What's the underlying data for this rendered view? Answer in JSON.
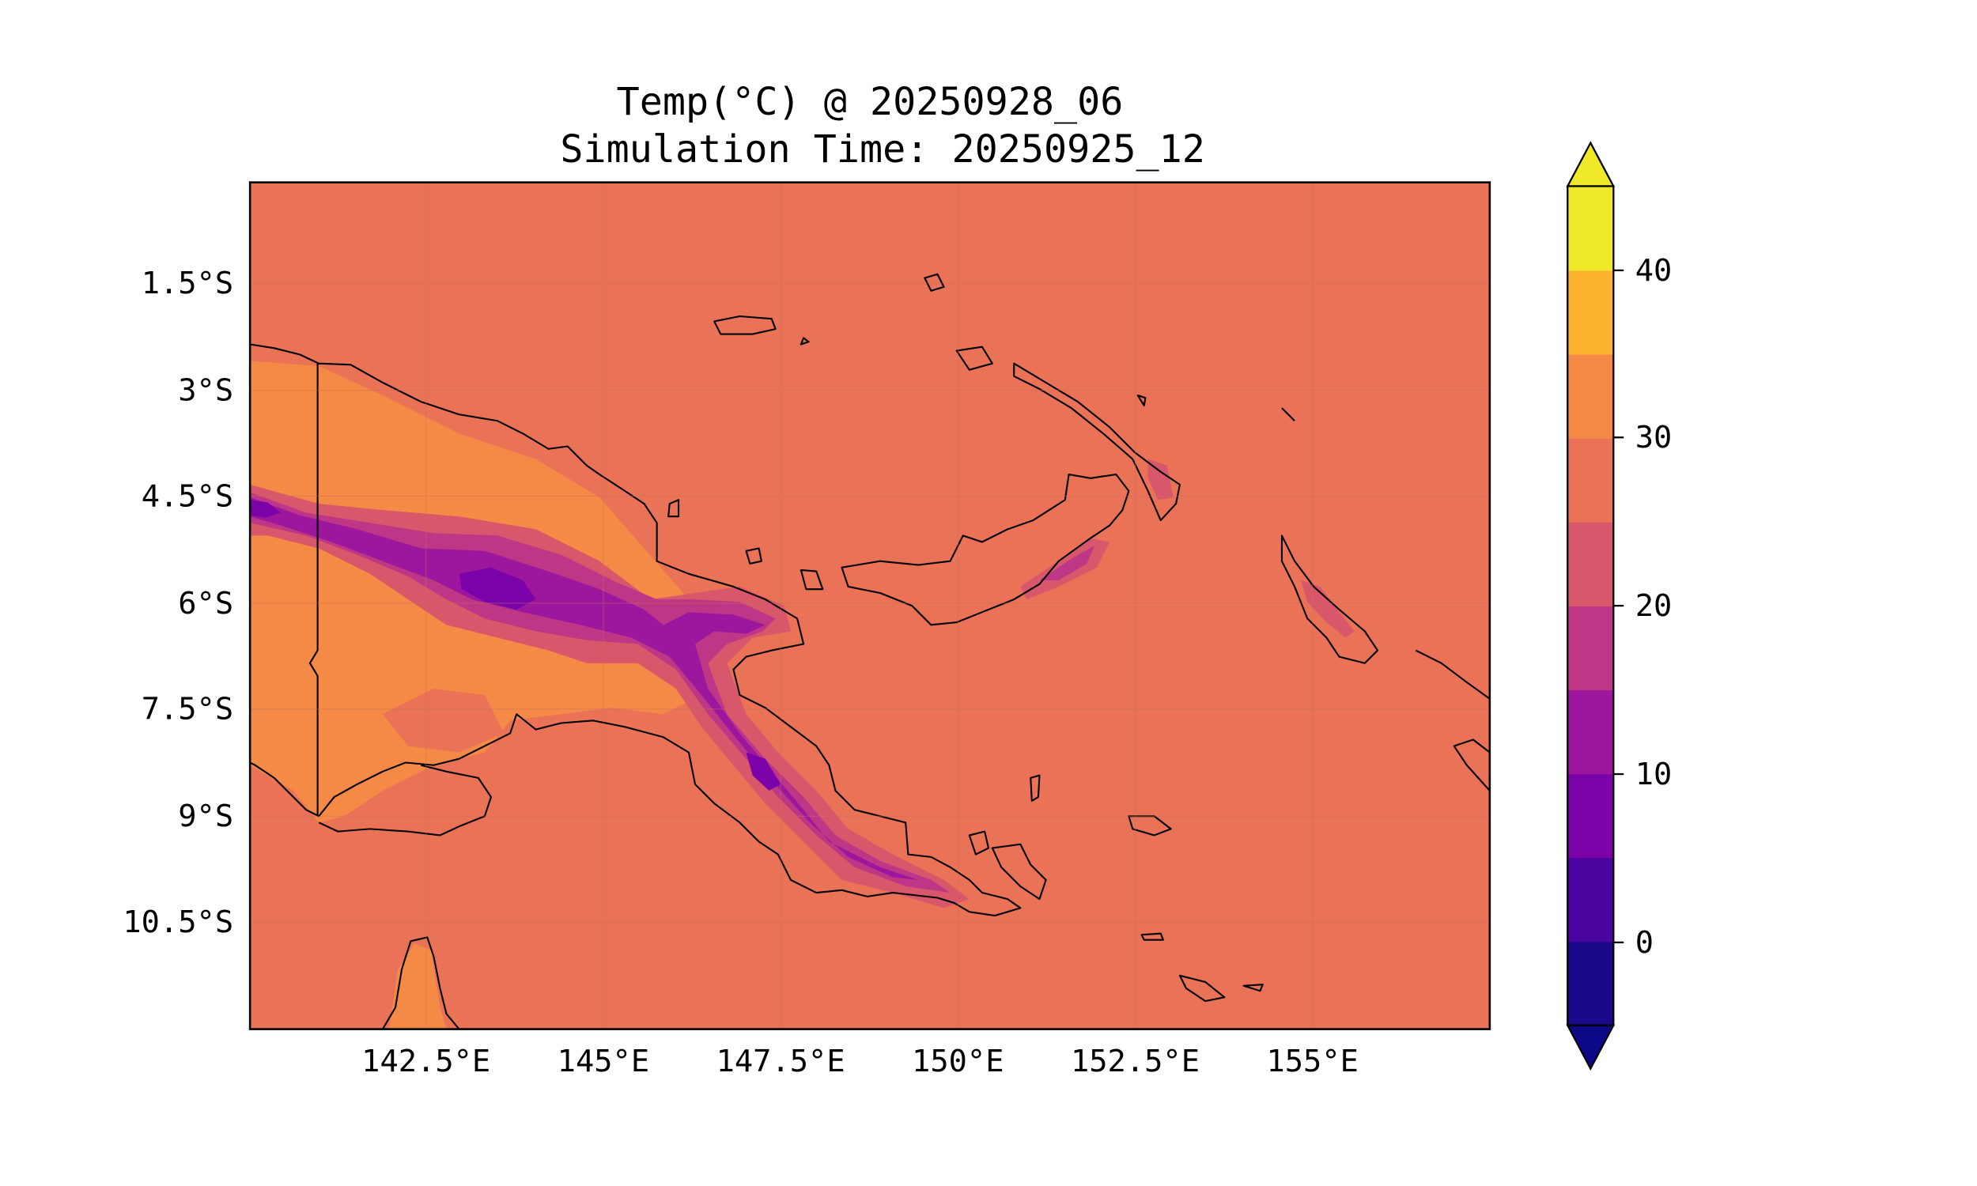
{
  "title": {
    "line1": "Temp(°C) @ 20250928_06",
    "line2": "Simulation Time: 20250925_12"
  },
  "map": {
    "lat_labels": [
      "1.5°S",
      "3°S",
      "4.5°S",
      "6°S",
      "7.5°S",
      "9°S",
      "10.5°S"
    ],
    "lon_labels": [
      "142.5°E",
      "145°E",
      "147.5°E",
      "150°E",
      "152.5°E",
      "155°E"
    ],
    "background_color": "#e97257",
    "coastline_color": "#000000"
  },
  "colorbar": {
    "tick_labels": [
      "0",
      "10",
      "20",
      "30",
      "40"
    ],
    "colors": [
      "#1a0a8a",
      "#4b04a0",
      "#7b02a8",
      "#9c179e",
      "#bd3786",
      "#d8576b",
      "#e97257",
      "#f48a46",
      "#fdb32f",
      "#f0e929"
    ],
    "extend": "both"
  },
  "colors": {
    "c30_35": "#f48a46",
    "c25_30": "#e97257",
    "c20_25": "#d8576b",
    "c15_20": "#bd3786",
    "c10_15": "#9c179e",
    "c5_10": "#7b02a8"
  }
}
